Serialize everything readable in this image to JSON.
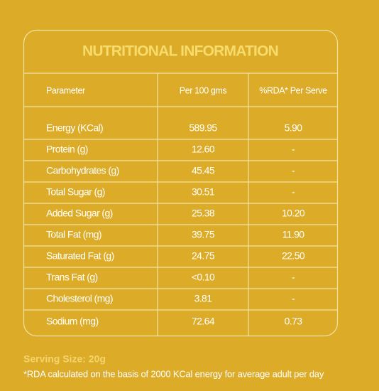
{
  "title": "NUTRITIONAL INFORMATION",
  "table": {
    "header": [
      "Parameter",
      "Per 100 gms",
      "%RDA* Per Serve"
    ],
    "rows": [
      [
        "Energy (KCal)",
        "589.95",
        "5.90"
      ],
      [
        "Protein (g)",
        "12.60",
        "-"
      ],
      [
        "Carbohydrates (g)",
        "45.45",
        "-"
      ],
      [
        "Total Sugar (g)",
        "30.51",
        "-"
      ],
      [
        "Added Sugar (g)",
        "25.38",
        "10.20"
      ],
      [
        "Total Fat (mg)",
        "39.75",
        "11.90"
      ],
      [
        "Saturated Fat (g)",
        "24.75",
        "22.50"
      ],
      [
        "Trans Fat (g)",
        "<0.10",
        "-"
      ],
      [
        "Cholesterol (mg)",
        "3.81",
        "-"
      ],
      [
        "Sodium (mg)",
        "72.64",
        "0.73"
      ]
    ]
  },
  "footer": {
    "serving": "Serving Size: 20g",
    "note": "*RDA calculated on the basis of 2000 KCal energy for average adult per day"
  }
}
